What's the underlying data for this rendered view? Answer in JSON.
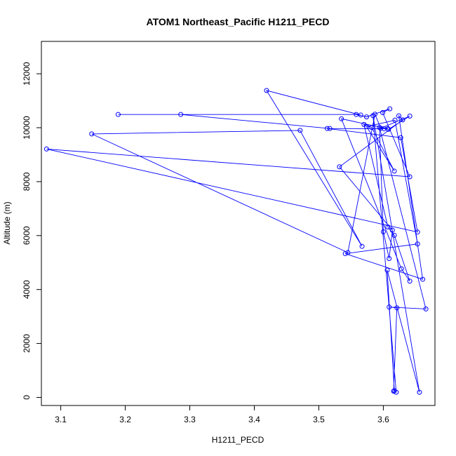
{
  "chart_data": {
    "type": "line",
    "title": "ATOM1 Northeast_Pacific H1211_PECD",
    "xlabel": "H1211_PECD",
    "ylabel": "Altitude (m)",
    "xlim": [
      3.07,
      3.68
    ],
    "ylim": [
      -300,
      13200
    ],
    "xticks": [
      3.1,
      3.2,
      3.3,
      3.4,
      3.5,
      3.6
    ],
    "yticks": [
      0,
      2000,
      4000,
      6000,
      8000,
      10000,
      12000
    ],
    "grid": false,
    "legend": "none",
    "color": "#0000ff",
    "series": [
      {
        "x": [
          3.565,
          3.419,
          3.567,
          3.471,
          3.148,
          3.545,
          3.587,
          3.596,
          3.641,
          3.608,
          3.601,
          3.517,
          3.286,
          3.189,
          3.558,
          3.574,
          3.61,
          3.599,
          3.641,
          3.078,
          3.653,
          3.627,
          3.513,
          3.607,
          3.535,
          3.628,
          3.641,
          3.617,
          3.607,
          3.57,
          3.582,
          3.617,
          3.574,
          3.618,
          3.653,
          3.541,
          3.661,
          3.624,
          3.63,
          3.532,
          3.614,
          3.609,
          3.6,
          3.594,
          3.666,
          3.609,
          3.621,
          3.616,
          3.62,
          3.584,
          3.656,
          3.606,
          3.617
        ],
        "y": [
          10470,
          11380,
          5600,
          9900,
          9770,
          5370,
          10500,
          9980,
          10430,
          9940,
          9960,
          9970,
          10490,
          10490,
          10490,
          10400,
          10700,
          10560,
          8180,
          9210,
          6130,
          9630,
          9970,
          9960,
          10330,
          4770,
          4310,
          6010,
          6320,
          10120,
          10010,
          8390,
          10040,
          10280,
          5690,
          5330,
          4380,
          10440,
          10290,
          8550,
          6200,
          5150,
          6140,
          10010,
          3280,
          3350,
          3320,
          230,
          190,
          10450,
          190,
          4720,
          250
        ]
      }
    ]
  }
}
